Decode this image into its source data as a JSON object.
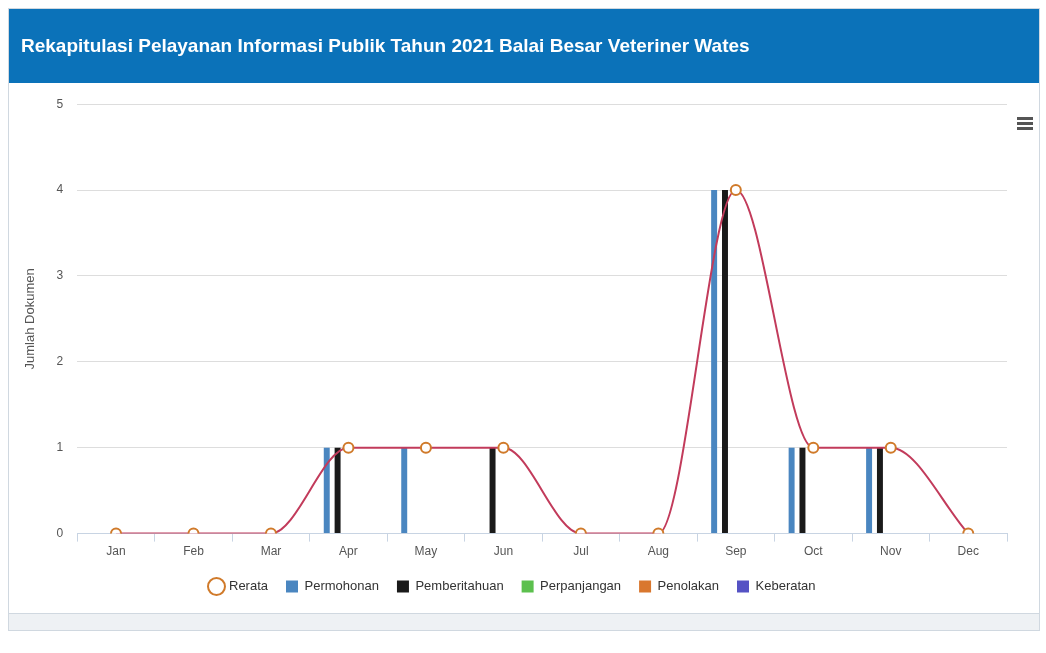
{
  "chart_data": {
    "type": "bar",
    "title": "Rekapitulasi Pelayanan Informasi Publik Tahun 2021 Balai Besar Veteriner Wates",
    "ylabel": "Jumlah Dokumen",
    "categories": [
      "Jan",
      "Feb",
      "Mar",
      "Apr",
      "May",
      "Jun",
      "Jul",
      "Aug",
      "Sep",
      "Oct",
      "Nov",
      "Dec"
    ],
    "series": [
      {
        "name": "Permohonan",
        "color": "#4a86c0",
        "values": [
          0,
          0,
          0,
          1,
          1,
          0,
          0,
          0,
          4,
          1,
          1,
          0
        ]
      },
      {
        "name": "Pemberitahuan",
        "color": "#1a1a1a",
        "values": [
          0,
          0,
          0,
          1,
          0,
          1,
          0,
          0,
          4,
          1,
          1,
          0
        ]
      },
      {
        "name": "Perpanjangan",
        "color": "#5cc04e",
        "values": [
          0,
          0,
          0,
          0,
          0,
          0,
          0,
          0,
          0,
          0,
          0,
          0
        ]
      },
      {
        "name": "Penolakan",
        "color": "#d9772e",
        "values": [
          0,
          0,
          0,
          0,
          0,
          0,
          0,
          0,
          0,
          0,
          0,
          0
        ]
      },
      {
        "name": "Keberatan",
        "color": "#5552c4",
        "values": [
          0,
          0,
          0,
          0,
          0,
          0,
          0,
          0,
          0,
          0,
          0,
          0
        ]
      },
      {
        "name": "Rerata",
        "type": "line",
        "color": "#c23b5b",
        "values": [
          0,
          0,
          0,
          1,
          1,
          1,
          0,
          0,
          4,
          1,
          1,
          0
        ]
      }
    ],
    "ylim": [
      0,
      5
    ],
    "yticks": [
      0,
      1,
      2,
      3,
      4,
      5
    ],
    "grid": "y",
    "legend": "bottom",
    "marker": "circle"
  }
}
